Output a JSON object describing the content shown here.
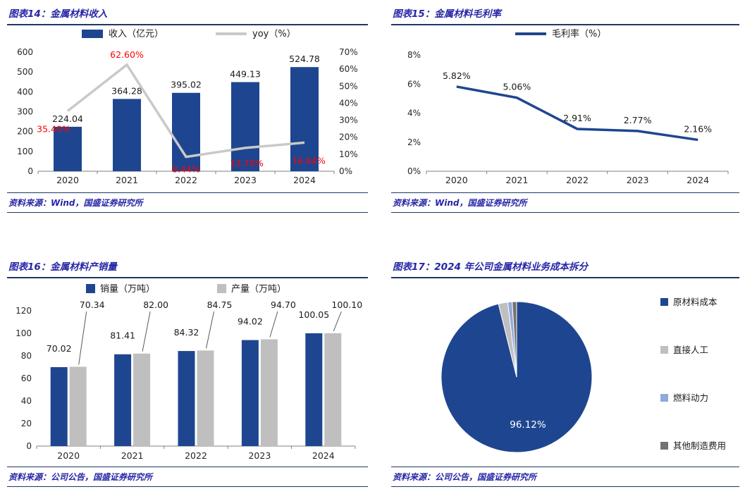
{
  "colors": {
    "primary": "#1E4690",
    "series_gray": "#C9C9C9",
    "light_gray": "#BFBFBF",
    "light_blue": "#8FAADC",
    "dark_gray": "#767171",
    "red": "#FF0000",
    "heading_blue": "#2626A6",
    "rule_navy": "#1F3864",
    "axis_text": "#262626",
    "label_black": "#1A1A1A"
  },
  "panels": {
    "fig14": {
      "title": "图表14：金属材料收入",
      "source": "资料来源：Wind，国盛证券研究所"
    },
    "fig15": {
      "title": "图表15：金属材料毛利率",
      "source": "资料来源：Wind，国盛证券研究所"
    },
    "fig16": {
      "title": "图表16：金属材料产销量",
      "source": "资料来源：公司公告，国盛证券研究所"
    },
    "fig17": {
      "title": "图表17：2024 年公司金属材料业务成本拆分",
      "source": "资料来源：公司公告，国盛证券研究所"
    }
  },
  "chart_data": [
    {
      "id": "fig14",
      "type": "bar",
      "title": "金属材料收入",
      "categories": [
        "2020",
        "2021",
        "2022",
        "2023",
        "2024"
      ],
      "series": [
        {
          "name": "收入（亿元）",
          "kind": "bar",
          "axis": "left",
          "values": [
            224.04,
            364.28,
            395.02,
            449.13,
            524.78
          ],
          "labels": [
            "224.04",
            "364.28",
            "395.02",
            "449.13",
            "524.78"
          ],
          "color": "primary"
        },
        {
          "name": "yoy（%）",
          "kind": "line",
          "axis": "right",
          "values": [
            35.4,
            62.6,
            8.44,
            13.7,
            16.84
          ],
          "labels": [
            "35.40%",
            "62.60%",
            "8.44%",
            "13.70%",
            "16.84%"
          ],
          "color": "series_gray",
          "label_color": "red"
        }
      ],
      "left_axis": {
        "min": 0,
        "max": 600,
        "step": 100,
        "suffix": ""
      },
      "right_axis": {
        "min": 0,
        "max": 70,
        "step": 10,
        "suffix": "%"
      },
      "legend_position": "top",
      "grid": false
    },
    {
      "id": "fig15",
      "type": "line",
      "title": "金属材料毛利率",
      "categories": [
        "2020",
        "2021",
        "2022",
        "2023",
        "2024"
      ],
      "series": [
        {
          "name": "毛利率（%）",
          "values": [
            5.82,
            5.06,
            2.91,
            2.77,
            2.16
          ],
          "labels": [
            "5.82%",
            "5.06%",
            "2.91%",
            "2.77%",
            "2.16%"
          ],
          "color": "primary"
        }
      ],
      "y_axis": {
        "min": 0,
        "max": 8,
        "step": 2,
        "suffix": "%"
      },
      "legend_position": "top",
      "grid": false
    },
    {
      "id": "fig16",
      "type": "bar",
      "title": "金属材料产销量",
      "categories": [
        "2020",
        "2021",
        "2022",
        "2023",
        "2024"
      ],
      "series": [
        {
          "name": "销量（万吨）",
          "values": [
            70.02,
            81.41,
            84.32,
            94.02,
            100.05
          ],
          "labels": [
            "70.02",
            "81.41",
            "84.32",
            "94.02",
            "100.05"
          ],
          "color": "primary"
        },
        {
          "name": "产量（万吨）",
          "values": [
            70.34,
            82.0,
            84.75,
            94.7,
            100.1
          ],
          "labels": [
            "70.34",
            "82.00",
            "84.75",
            "94.70",
            "100.10"
          ],
          "color": "light_gray"
        }
      ],
      "y_axis": {
        "min": 0,
        "max": 120,
        "step": 20,
        "suffix": ""
      },
      "legend_position": "top",
      "grid": false
    },
    {
      "id": "fig17",
      "type": "pie",
      "title": "2024 年公司金属材料业务成本拆分",
      "slices": [
        {
          "label": "原材料成本",
          "value": 96.12,
          "data_label": "96.12%",
          "color": "primary",
          "estimated": false
        },
        {
          "label": "直接人工",
          "value": 2.0,
          "data_label": "",
          "color": "light_gray",
          "estimated": true
        },
        {
          "label": "燃料动力",
          "value": 0.94,
          "data_label": "",
          "color": "light_blue",
          "estimated": true
        },
        {
          "label": "其他制造费用",
          "value": 0.94,
          "data_label": "",
          "color": "dark_gray",
          "estimated": true
        }
      ],
      "legend_position": "right"
    }
  ]
}
